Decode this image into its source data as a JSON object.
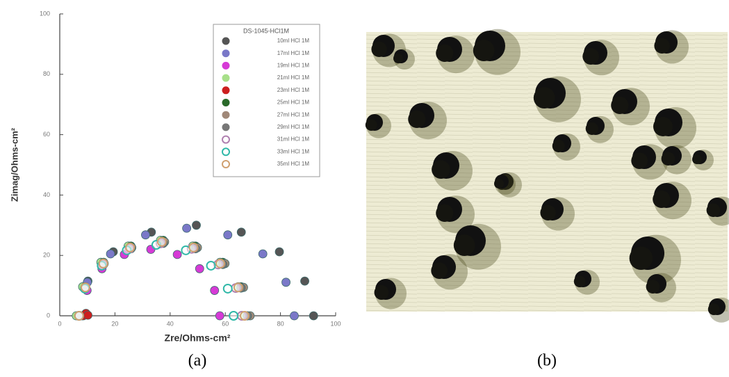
{
  "chart_data": {
    "type": "scatter",
    "xlabel": "Zre/Ohms-cm²",
    "ylabel": "Zimag/Ohms-cm²",
    "legend_title": "DS-1045-HCl1M",
    "legend": "upper right",
    "xlim": [
      0,
      100
    ],
    "xticks": [
      0,
      20,
      40,
      60,
      80,
      100
    ],
    "ylim": [
      0,
      100
    ],
    "yticks": [
      0,
      20,
      40,
      60,
      80,
      100
    ],
    "series": [
      {
        "name": "10ml HCl 1M",
        "color": "#555555",
        "marker": "filled",
        "x": [
          7,
          10.2,
          19.4,
          33.2,
          49.5,
          65.8,
          79.6,
          88.8,
          92
        ],
        "values": [
          0,
          11.5,
          21.2,
          27.7,
          30,
          27.7,
          21.2,
          11.5,
          0
        ]
      },
      {
        "name": "17ml HCl 1M",
        "color": "#7a78c8",
        "marker": "filled",
        "x": [
          7,
          10,
          18.4,
          31.1,
          46,
          60.9,
          73.6,
          82,
          85
        ],
        "values": [
          0,
          11.1,
          20.5,
          26.8,
          29,
          26.8,
          20.5,
          11.1,
          0
        ]
      },
      {
        "name": "19ml HCl 1M",
        "color": "#d63ad6",
        "marker": "filled",
        "x": [
          8,
          9.9,
          15.3,
          23.4,
          33,
          42.6,
          50.7,
          56.1,
          58
        ],
        "values": [
          0,
          8.4,
          15.6,
          20.3,
          22,
          20.3,
          15.6,
          8.4,
          0
        ]
      },
      {
        "name": "21ml HCl 1M",
        "color": "#a8e08a",
        "marker": "filled",
        "x": [
          6,
          8.3,
          14.9,
          24.8,
          36.5,
          48.2,
          58.1,
          64.7,
          67
        ],
        "values": [
          0,
          9.6,
          17.7,
          23.1,
          25,
          23.1,
          17.7,
          9.6,
          0
        ]
      },
      {
        "name": "23ml HCl 1M",
        "color": "#cc1f1f",
        "marker": "filled",
        "x": [
          8.5,
          9.5,
          10.2
        ],
        "values": [
          0,
          0.8,
          0.2
        ]
      },
      {
        "name": "25ml HCl 1M",
        "color": "#2a6a2a",
        "marker": "filled",
        "x": [
          7,
          9.3,
          15.9,
          25.8,
          37.5,
          49.2,
          59.1,
          65.7,
          68
        ],
        "values": [
          0,
          9.6,
          17.7,
          23.1,
          25,
          23.1,
          17.7,
          9.6,
          0
        ]
      },
      {
        "name": "27ml HCl 1M",
        "color": "#a08878",
        "marker": "filled",
        "x": [
          7,
          9.4,
          16.1,
          26.1,
          38,
          49.9,
          59.9,
          66.6,
          69
        ],
        "values": [
          0,
          9.4,
          17.3,
          22.6,
          24.5,
          22.6,
          17.3,
          9.4,
          0
        ]
      },
      {
        "name": "29ml HCl 1M",
        "color": "#777777",
        "marker": "filled",
        "x": [
          7,
          9.3,
          15.9,
          25.8,
          37.5,
          49.2,
          59.1,
          65.7,
          68
        ],
        "values": [
          0,
          9.2,
          17,
          22.2,
          24,
          22.2,
          17,
          9.2,
          0
        ]
      },
      {
        "name": "31ml HCl 1M",
        "color": "#b080b0",
        "marker": "open",
        "x": [
          7,
          9.2,
          15.6,
          25.2,
          36.5,
          47.8,
          57.4,
          63.8,
          66
        ],
        "values": [
          0,
          9.2,
          17,
          22.2,
          24,
          22.2,
          17,
          9.2,
          0
        ]
      },
      {
        "name": "33ml HCl 1M",
        "color": "#30b8a8",
        "marker": "open",
        "x": [
          7,
          9.1,
          15.2,
          24.3,
          35,
          45.7,
          54.8,
          60.9,
          63
        ],
        "values": [
          0,
          9,
          16.6,
          21.7,
          23.5,
          21.7,
          16.6,
          9,
          0
        ]
      },
      {
        "name": "35ml HCl 1M",
        "color": "#d0a070",
        "marker": "open",
        "x": [
          7,
          9.3,
          15.8,
          25.5,
          37,
          48.5,
          58.2,
          64.7,
          67
        ],
        "values": [
          0,
          9.4,
          17.3,
          22.6,
          24.5,
          22.6,
          17.3,
          9.4,
          0
        ]
      }
    ]
  },
  "figure": {
    "captions": [
      "(a)",
      "(b)"
    ]
  }
}
